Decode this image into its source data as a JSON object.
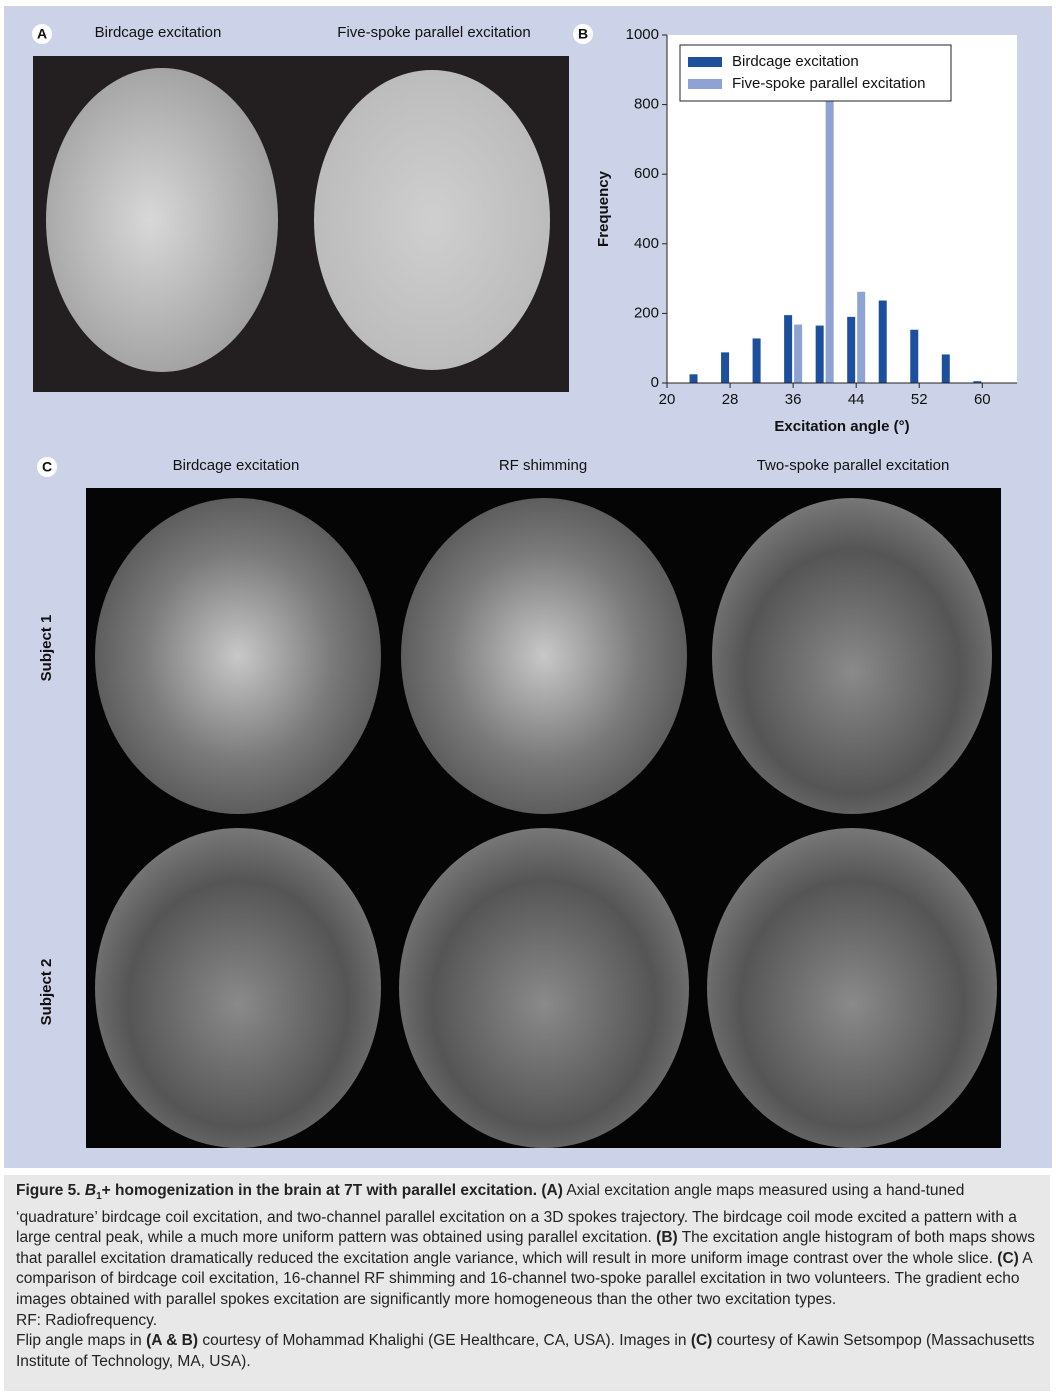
{
  "panel_a": {
    "label": "A",
    "titles": [
      "Birdcage excitation",
      "Five-spoke parallel excitation"
    ]
  },
  "chart_data": {
    "type": "bar",
    "label": "B",
    "x_label": "Excitation angle (°)",
    "y_label": "Frequency",
    "x": [
      24,
      28,
      32,
      36,
      40,
      44,
      48,
      52,
      56,
      60
    ],
    "series": [
      {
        "name": "Birdcage excitation",
        "color": "#1c4f9c",
        "values": [
          25,
          88,
          128,
          195,
          165,
          190,
          237,
          153,
          82,
          5
        ]
      },
      {
        "name": "Five-spoke parallel excitation",
        "color": "#8fa2d4",
        "values": [
          null,
          null,
          null,
          168,
          820,
          262,
          null,
          null,
          null,
          null
        ]
      }
    ],
    "xlim": [
      20,
      64.4
    ],
    "xticks": [
      20,
      28,
      36,
      44,
      52,
      60
    ],
    "ylim": [
      0,
      1000
    ],
    "yticks": [
      0,
      200,
      400,
      600,
      800,
      1000
    ],
    "legend": "upper left"
  },
  "panel_c": {
    "label": "C",
    "column_titles": [
      "Birdcage excitation",
      "RF shimming",
      "Two-spoke parallel excitation"
    ],
    "row_labels": [
      "Subject 1",
      "Subject 2"
    ]
  },
  "caption": {
    "paragraphs": [
      [
        {
          "text": "Figure 5. ",
          "style": "b"
        },
        {
          "text": "B",
          "style": "bi"
        },
        {
          "text": "1",
          "style": "bsub"
        },
        {
          "text": "+ homogenization in the brain at 7T with parallel excitation.",
          "style": "b"
        },
        {
          "text": " ",
          "style": ""
        },
        {
          "text": "(A)",
          "style": "b"
        },
        {
          "text": " Axial excitation angle maps measured using a hand-tuned ‘quadrature’ birdcage coil excitation, and two-channel parallel excitation on a 3D spokes trajectory. The birdcage coil mode excited a pattern with a large central peak, while a much more uniform pattern was obtained using parallel excitation. ",
          "style": ""
        },
        {
          "text": "(B)",
          "style": "b"
        },
        {
          "text": " The excitation angle histogram of both maps shows that parallel excitation dramatically reduced the excitation angle variance, which will result in more uniform image contrast over the whole slice. ",
          "style": ""
        },
        {
          "text": "(C)",
          "style": "b"
        },
        {
          "text": " A comparison of birdcage coil excitation, 16-channel RF shimming and 16-channel two-spoke parallel excitation in two volunteers. The gradient echo images obtained with parallel spokes excitation are significantly more homogeneous than the other two excitation types.",
          "style": ""
        }
      ],
      [
        {
          "text": "RF: Radiofrequency.",
          "style": ""
        }
      ],
      [
        {
          "text": "Flip angle maps in ",
          "style": ""
        },
        {
          "text": "(A & B)",
          "style": "b"
        },
        {
          "text": " courtesy of Mohammad Khalighi (GE Healthcare, CA, USA). Images in ",
          "style": ""
        },
        {
          "text": "(C)",
          "style": "b"
        },
        {
          "text": " courtesy of Kawin Setsompop (Massachusetts Institute of Technology, MA, USA).",
          "style": ""
        }
      ]
    ]
  }
}
